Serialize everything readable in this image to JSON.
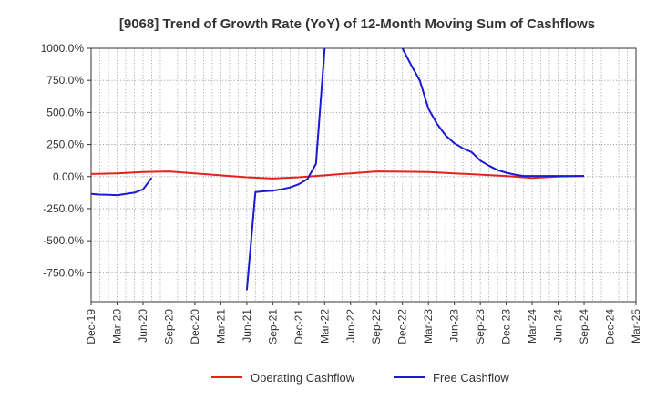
{
  "chart_data": {
    "type": "line",
    "title": "[9068]  Trend of Growth Rate (YoY) of 12-Month Moving Sum of Cashflows",
    "xlabel": "",
    "ylabel": "",
    "ylim": [
      -975,
      1000
    ],
    "y_ticks": [
      1000,
      750,
      500,
      250,
      0,
      -250,
      -500,
      -750
    ],
    "y_tick_labels": [
      "1000.0%",
      "750.0%",
      "500.0%",
      "250.0%",
      "0.00%",
      "-250.0%",
      "-500.0%",
      "-750.0%"
    ],
    "x_tick_labels": [
      "Dec-19",
      "Mar-20",
      "Jun-20",
      "Sep-20",
      "Dec-20",
      "Mar-21",
      "Jun-21",
      "Sep-21",
      "Dec-21",
      "Mar-22",
      "Jun-22",
      "Sep-22",
      "Dec-22",
      "Mar-23",
      "Jun-23",
      "Sep-23",
      "Dec-23",
      "Mar-24",
      "Jun-24",
      "Sep-24",
      "Dec-24",
      "Mar-25"
    ],
    "x_range_months": [
      "2019-12",
      "2025-03"
    ],
    "grid": true,
    "legend_position": "bottom",
    "series": [
      {
        "name": "Operating Cashflow",
        "color": "#e8201c",
        "points": [
          [
            "2019-12",
            20
          ],
          [
            "2020-03",
            25
          ],
          [
            "2020-06",
            35
          ],
          [
            "2020-09",
            40
          ],
          [
            "2020-12",
            25
          ],
          [
            "2021-03",
            10
          ],
          [
            "2021-06",
            -5
          ],
          [
            "2021-09",
            -15
          ],
          [
            "2021-12",
            -5
          ],
          [
            "2022-03",
            10
          ],
          [
            "2022-06",
            25
          ],
          [
            "2022-09",
            40
          ],
          [
            "2022-12",
            38
          ],
          [
            "2023-03",
            35
          ],
          [
            "2023-06",
            25
          ],
          [
            "2023-09",
            15
          ],
          [
            "2023-12",
            5
          ],
          [
            "2024-03",
            -10
          ],
          [
            "2024-06",
            0
          ],
          [
            "2024-09",
            5
          ]
        ]
      },
      {
        "name": "Free Cashflow",
        "color": "#1919d6",
        "segments": [
          [
            [
              "2019-12",
              -135
            ],
            [
              "2020-01",
              -140
            ],
            [
              "2020-02",
              -142
            ],
            [
              "2020-03",
              -145
            ],
            [
              "2020-04",
              -135
            ],
            [
              "2020-05",
              -125
            ],
            [
              "2020-06",
              -100
            ],
            [
              "2020-07",
              -10
            ]
          ],
          [
            [
              "2021-06",
              -885
            ],
            [
              "2021-07",
              -120
            ],
            [
              "2021-08",
              -115
            ],
            [
              "2021-09",
              -110
            ],
            [
              "2021-10",
              -100
            ],
            [
              "2021-11",
              -85
            ],
            [
              "2021-12",
              -60
            ],
            [
              "2022-01",
              -20
            ],
            [
              "2022-02",
              100
            ],
            [
              "2022-03",
              1000
            ]
          ],
          [
            [
              "2022-12",
              1000
            ],
            [
              "2023-01",
              870
            ],
            [
              "2023-02",
              750
            ],
            [
              "2023-03",
              530
            ],
            [
              "2023-04",
              410
            ],
            [
              "2023-05",
              320
            ],
            [
              "2023-06",
              260
            ],
            [
              "2023-07",
              220
            ],
            [
              "2023-08",
              190
            ],
            [
              "2023-09",
              125
            ],
            [
              "2023-10",
              85
            ],
            [
              "2023-11",
              50
            ],
            [
              "2023-12",
              30
            ],
            [
              "2024-01",
              15
            ],
            [
              "2024-02",
              5
            ],
            [
              "2024-03",
              5
            ],
            [
              "2024-06",
              5
            ],
            [
              "2024-09",
              5
            ]
          ]
        ]
      }
    ]
  }
}
